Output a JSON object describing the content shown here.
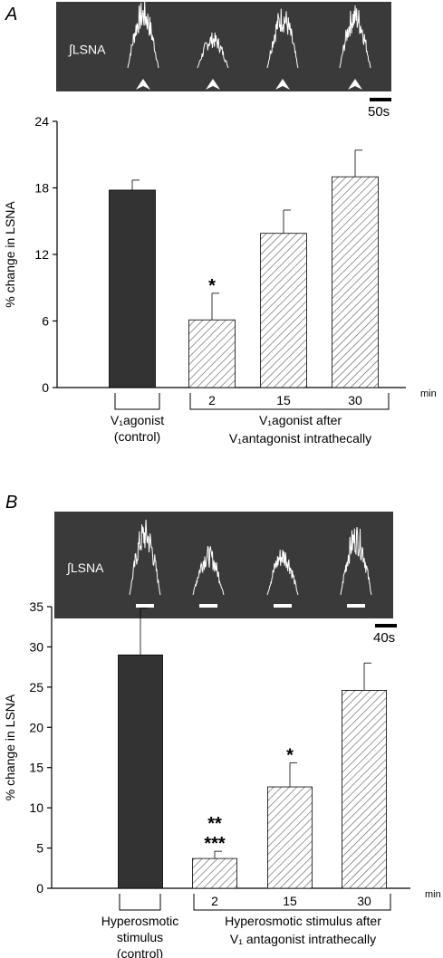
{
  "chart_data": [
    {
      "panel_label": "A",
      "type": "bar",
      "trace": {
        "label": "∫LSNA",
        "scale_label": "50s",
        "marker": "arrowhead"
      },
      "ylabel": "% change in LSNA",
      "ylim": [
        0,
        24
      ],
      "yticks": [
        "0",
        "6",
        "12",
        "18",
        "24"
      ],
      "unit_label": "min",
      "categories": [
        "control",
        "2",
        "15",
        "30"
      ],
      "values": [
        17.8,
        6.1,
        13.9,
        19.0
      ],
      "errors": [
        0.9,
        2.4,
        2.1,
        2.4
      ],
      "significance": [
        "",
        "*",
        "",
        ""
      ],
      "fill": [
        "solid",
        "hatched",
        "hatched",
        "hatched"
      ],
      "group_labels": {
        "control_line1": "V₁agonist",
        "control_line2": "(control)",
        "after_line1": "V₁agonist after",
        "after_line2": "V₁antagonist intrathecally"
      }
    },
    {
      "panel_label": "B",
      "type": "bar",
      "trace": {
        "label": "∫LSNA",
        "scale_label": "40s",
        "marker": "bar"
      },
      "ylabel": "% change in LSNA",
      "ylim": [
        0,
        35
      ],
      "yticks": [
        "0",
        "5",
        "10",
        "15",
        "20",
        "25",
        "30",
        "35"
      ],
      "unit_label": "min",
      "categories": [
        "control",
        "2",
        "15",
        "30"
      ],
      "values": [
        29.0,
        3.7,
        12.6,
        24.6
      ],
      "errors": [
        5.8,
        0.9,
        3.0,
        3.4
      ],
      "significance": [
        "",
        "**\n***",
        "*",
        ""
      ],
      "fill": [
        "solid",
        "hatched",
        "hatched",
        "hatched"
      ],
      "group_labels": {
        "control_line1": "Hyperosmotic",
        "control_line2": "stimulus",
        "control_line3": "(control)",
        "after_line1": "Hyperosmotic stimulus after",
        "after_line2": "V₁ antagonist intrathecally"
      }
    }
  ],
  "colors": {
    "trace_bg": "#3a3a3a",
    "bar_solid": "#333333",
    "hatch": "#555555"
  }
}
